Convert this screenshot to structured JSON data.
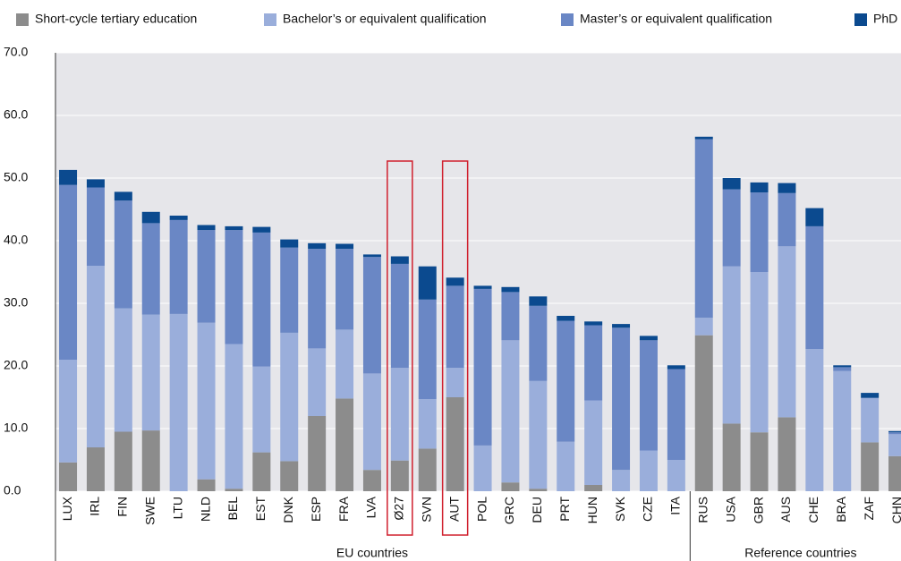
{
  "chart_data": {
    "type": "stacked_bar",
    "categories": [
      "LUX",
      "IRL",
      "FIN",
      "SWE",
      "LTU",
      "NLD",
      "BEL",
      "EST",
      "DNK",
      "ESP",
      "FRA",
      "LVA",
      "Ø27",
      "SVN",
      "AUT",
      "POL",
      "GRC",
      "DEU",
      "PRT",
      "HUN",
      "SVK",
      "CZE",
      "ITA",
      "RUS",
      "USA",
      "GBR",
      "AUS",
      "CHE",
      "BRA",
      "ZAF",
      "CHN"
    ],
    "series": [
      {
        "name": "Short-cycle tertiary education",
        "color": "#8c8c8c",
        "values": [
          4.6,
          7.0,
          9.5,
          9.7,
          0,
          1.9,
          0.4,
          6.2,
          4.8,
          12.0,
          14.8,
          3.4,
          4.9,
          6.8,
          15.0,
          0,
          1.4,
          0.4,
          0,
          1.0,
          0,
          0,
          0,
          24.9,
          10.8,
          9.4,
          11.8,
          0,
          0,
          7.8,
          5.6
        ]
      },
      {
        "name": "Bachelor’s or equivalent qualification",
        "color": "#9aaedb",
        "values": [
          16.4,
          29.0,
          19.7,
          18.5,
          28.3,
          25.0,
          23.1,
          13.7,
          20.5,
          10.8,
          11.0,
          15.4,
          14.8,
          7.9,
          4.7,
          7.3,
          22.7,
          17.2,
          7.9,
          13.5,
          3.4,
          6.5,
          5.0,
          2.8,
          25.1,
          25.6,
          27.3,
          22.7,
          19.2,
          7.1,
          3.5
        ]
      },
      {
        "name": "Master’s or equivalent qualification",
        "color": "#6a87c5",
        "values": [
          27.9,
          12.5,
          17.2,
          14.6,
          15.0,
          14.8,
          18.2,
          21.4,
          13.6,
          15.9,
          12.9,
          18.6,
          16.6,
          15.9,
          13.1,
          25.0,
          7.7,
          12.0,
          19.3,
          12.0,
          22.7,
          17.6,
          14.5,
          28.5,
          12.3,
          12.7,
          8.5,
          19.6,
          0.6,
          0,
          0.3
        ]
      },
      {
        "name": "PhD",
        "color": "#0b4a8f",
        "values": [
          2.4,
          1.3,
          1.4,
          1.8,
          0.7,
          0.8,
          0.6,
          0.9,
          1.3,
          0.9,
          0.8,
          0.4,
          1.2,
          5.3,
          1.3,
          0.5,
          0.8,
          1.5,
          0.8,
          0.6,
          0.6,
          0.7,
          0.6,
          0.4,
          1.8,
          1.6,
          1.6,
          2.9,
          0.3,
          0.8,
          0.2
        ]
      }
    ],
    "groups": [
      {
        "label": "EU countries",
        "start": 0,
        "end": 22
      },
      {
        "label": "Reference countries",
        "start": 23,
        "end": 30
      }
    ],
    "highlighted_categories": [
      12,
      14
    ],
    "ylim": [
      0,
      70
    ],
    "yticks": [
      {
        "value": 0,
        "label": "0.0"
      },
      {
        "value": 10,
        "label": "10.0"
      },
      {
        "value": 20,
        "label": "20.0"
      },
      {
        "value": 30,
        "label": "30.0"
      },
      {
        "value": 40,
        "label": "40.0"
      },
      {
        "value": 50,
        "label": "50.0"
      },
      {
        "value": 60,
        "label": "60.0"
      },
      {
        "value": 70,
        "label": "70.0"
      }
    ],
    "grid": true,
    "legend": "top"
  }
}
